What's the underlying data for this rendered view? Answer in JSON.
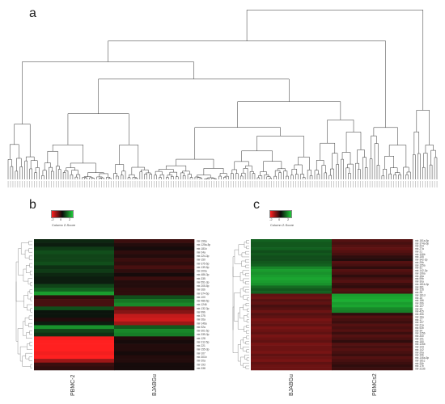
{
  "figure": {
    "panels": [
      {
        "letter": "a"
      },
      {
        "letter": "b",
        "color_key_title": "Column Z-Score",
        "color_key_ticks": [
          "-2",
          "0",
          "2"
        ],
        "samples": [
          "PBMC-2",
          "BJABGu"
        ]
      },
      {
        "letter": "c",
        "color_key_title": "Column Z-Score",
        "color_key_ticks": [
          "-2",
          "0",
          "2"
        ],
        "samples": [
          "BJABGu",
          "PBMCs2"
        ]
      }
    ],
    "colors": {
      "low": "#ff2020",
      "mid": "#0a0a0a",
      "high": "#1fcc3a"
    }
  },
  "chart_data": [
    {
      "type": "dendrogram",
      "panel": "a",
      "title": "",
      "leaves": 180
    },
    {
      "type": "heatmap",
      "panel": "b",
      "title": "",
      "columns": [
        "PBMC-2",
        "BJABGu"
      ],
      "rows": [
        "mir-196a",
        "mir-125a-5p",
        "mir-181b",
        "mir-24a",
        "mir-224-3p",
        "mir-150",
        "mir-375-5p",
        "mir-139-5p",
        "mir-200a",
        "mir-486-3p",
        "mir-335",
        "mir-551-3p",
        "mir-205-5p",
        "mir-26b",
        "mir-374-5p",
        "mir-100",
        "mir-486-5p",
        "mir-1246",
        "mir-132-3p",
        "mir-99b",
        "mir-375",
        "mir-26a",
        "mir-146a",
        "mir-92a",
        "mir-301-5p",
        "mir-335-3p",
        "mir-128",
        "mir-212-5p",
        "mir-221",
        "mir-155-3p",
        "mir-107",
        "mir-301b",
        "mir-20a",
        "mir-193",
        "mir-338"
      ],
      "values": [
        [
          0.3,
          -0.4
        ],
        [
          0.2,
          -0.2
        ],
        [
          0.5,
          -0.1
        ],
        [
          0.7,
          -0.3
        ],
        [
          0.6,
          -0.2
        ],
        [
          0.6,
          -0.4
        ],
        [
          0.7,
          -0.3
        ],
        [
          0.4,
          -0.5
        ],
        [
          0.5,
          -0.3
        ],
        [
          0.3,
          -0.1
        ],
        [
          0.2,
          -0.4
        ],
        [
          0.2,
          -0.2
        ],
        [
          0.6,
          -0.2
        ],
        [
          0.9,
          -0.3
        ],
        [
          1.5,
          -0.3
        ],
        [
          -0.3,
          0.7
        ],
        [
          -0.5,
          1.1
        ],
        [
          -0.5,
          1.3
        ],
        [
          0.7,
          -0.8
        ],
        [
          0.1,
          -1.0
        ],
        [
          0.1,
          -1.5
        ],
        [
          -0.2,
          -1.6
        ],
        [
          0.2,
          -1.2
        ],
        [
          1.4,
          0.8
        ],
        [
          0.6,
          1.3
        ],
        [
          0.4,
          1.2
        ],
        [
          -1.9,
          -0.2
        ],
        [
          -2.0,
          -0.1
        ],
        [
          -2.0,
          -0.2
        ],
        [
          -2.0,
          -0.2
        ],
        [
          -1.9,
          -0.1
        ],
        [
          -2.0,
          -0.2
        ],
        [
          -1.2,
          -0.2
        ],
        [
          -0.4,
          -0.1
        ],
        [
          -0.3,
          -0.1
        ]
      ]
    },
    {
      "type": "heatmap",
      "panel": "c",
      "title": "",
      "columns": [
        "BJABGu",
        "PBMCs2"
      ],
      "rows": [
        "mir-181a-5p",
        "mir-374a-5p",
        "mir-223",
        "mir-27a",
        "mir-21",
        "mir-106b",
        "mir-155",
        "mir-342-3p",
        "mir-29b",
        "mir-155a",
        "mir-31",
        "mir-142-3p",
        "mir-196a",
        "mir-15a",
        "mir-99b",
        "mir-30a",
        "mir-181b-3p",
        "mir-361",
        "mir-126",
        "mir-28",
        "mir-181d",
        "mir-16",
        "mir-186",
        "mir-26b",
        "mir-107",
        "mir-24",
        "mir-425",
        "mir-30b",
        "mir-18a",
        "mir-17",
        "mir-197",
        "mir-21a",
        "mir-92b",
        "mir-34",
        "mir-125b",
        "mir-340",
        "mir-191",
        "mir-150",
        "mir-126b",
        "mir-143",
        "mir-142",
        "mir-29a",
        "mir-19b",
        "mir-146a-5p",
        "mir-181c",
        "mir-20b",
        "mir-17b",
        "mir-223b"
      ],
      "values": [
        [
          0.9,
          -0.6
        ],
        [
          0.8,
          -0.5
        ],
        [
          0.8,
          -0.6
        ],
        [
          0.9,
          -0.7
        ],
        [
          0.7,
          -0.6
        ],
        [
          0.8,
          -0.5
        ],
        [
          0.7,
          -0.3
        ],
        [
          0.7,
          -0.2
        ],
        [
          0.8,
          -0.6
        ],
        [
          0.9,
          -0.5
        ],
        [
          1.3,
          -0.3
        ],
        [
          1.5,
          -0.6
        ],
        [
          1.4,
          -0.5
        ],
        [
          1.5,
          -0.3
        ],
        [
          1.6,
          -0.5
        ],
        [
          1.5,
          -0.6
        ],
        [
          1.4,
          -0.4
        ],
        [
          1.0,
          -0.3
        ],
        [
          0.8,
          -0.6
        ],
        [
          0.9,
          -0.5
        ],
        [
          -0.7,
          1.5
        ],
        [
          -0.8,
          1.6
        ],
        [
          -0.6,
          1.7
        ],
        [
          -0.7,
          1.5
        ],
        [
          -0.5,
          1.6
        ],
        [
          -0.6,
          1.3
        ],
        [
          -0.8,
          1.2
        ],
        [
          -0.6,
          -0.3
        ],
        [
          -0.7,
          -0.6
        ],
        [
          -0.9,
          -0.5
        ],
        [
          -0.8,
          -0.4
        ],
        [
          -0.7,
          -0.6
        ],
        [
          -0.9,
          -0.5
        ],
        [
          -0.8,
          -0.6
        ],
        [
          -0.7,
          -0.4
        ],
        [
          -0.9,
          -0.6
        ],
        [
          -0.8,
          -0.5
        ],
        [
          -0.7,
          -0.3
        ],
        [
          -0.9,
          -0.6
        ],
        [
          -0.8,
          -0.5
        ],
        [
          -0.8,
          -0.6
        ],
        [
          -0.9,
          -0.5
        ],
        [
          -0.7,
          -0.4
        ],
        [
          -0.8,
          -0.6
        ],
        [
          -0.9,
          -0.5
        ],
        [
          -0.7,
          -0.4
        ],
        [
          -0.8,
          -0.3
        ],
        [
          -0.8,
          -0.4
        ]
      ]
    }
  ]
}
